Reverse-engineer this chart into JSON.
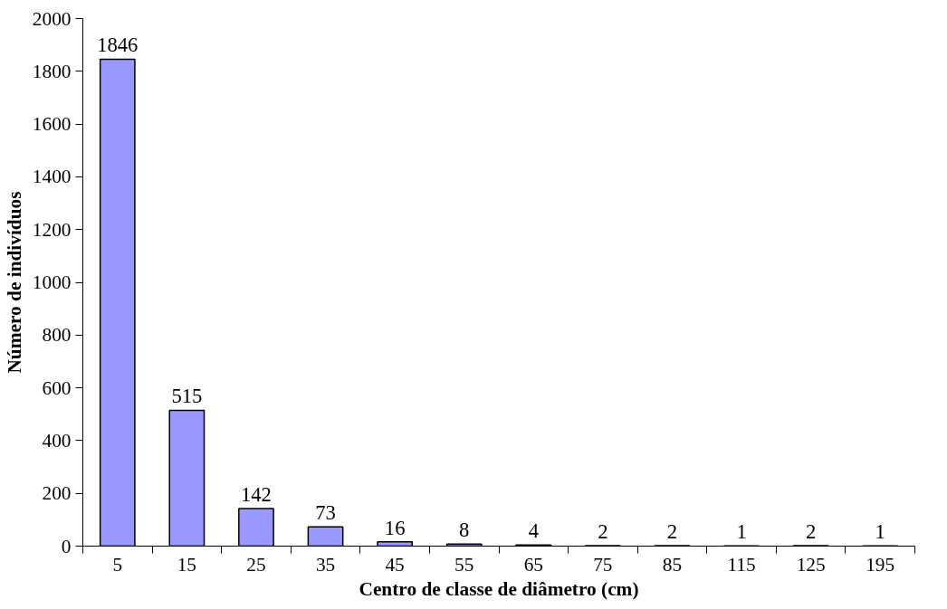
{
  "chart_data": {
    "type": "bar",
    "xlabel": "Centro de classe de diâmetro (cm)",
    "ylabel": "Número de indivíduos",
    "categories": [
      "5",
      "15",
      "25",
      "35",
      "45",
      "55",
      "65",
      "75",
      "85",
      "115",
      "125",
      "195"
    ],
    "values": [
      1846,
      515,
      142,
      73,
      16,
      8,
      4,
      2,
      2,
      1,
      2,
      1
    ],
    "color": "#9999ff",
    "data_labels": true,
    "grid": false,
    "ylim": [
      0,
      2000
    ],
    "yticks": [
      0,
      200,
      400,
      600,
      800,
      1000,
      1200,
      1400,
      1600,
      1800,
      2000
    ]
  }
}
